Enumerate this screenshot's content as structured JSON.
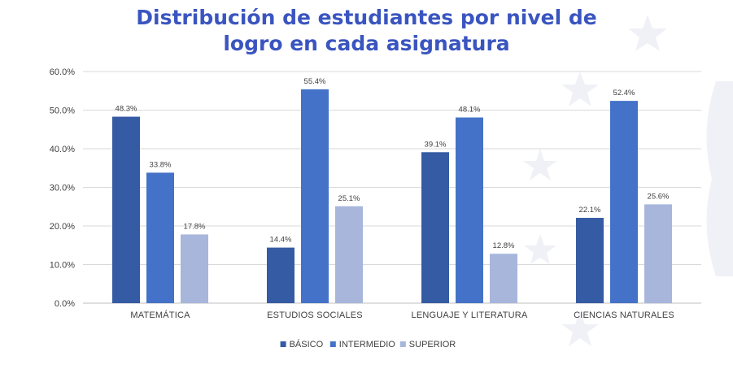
{
  "chart_data": {
    "type": "bar",
    "title_lines": [
      "Distribución de estudiantes por nivel de",
      "logro en cada asignatura"
    ],
    "categories": [
      "MATEMÁTICA",
      "ESTUDIOS SOCIALES",
      "LENGUAJE Y LITERATURA",
      "CIENCIAS  NATURALES"
    ],
    "series": [
      {
        "name": "BÁSICO",
        "color": "#345ba3",
        "values": [
          48.3,
          14.4,
          39.1,
          22.1
        ],
        "labels": [
          "48.3%",
          "14.4%",
          "39.1%",
          "22.1%"
        ]
      },
      {
        "name": "INTERMEDIO",
        "color": "#4472c8",
        "values": [
          33.8,
          55.4,
          48.1,
          52.4
        ],
        "labels": [
          "33.8%",
          "55.4%",
          "48.1%",
          "52.4%"
        ]
      },
      {
        "name": "SUPERIOR",
        "color": "#a8b6dc",
        "values": [
          17.8,
          25.1,
          12.8,
          25.6
        ],
        "labels": [
          "17.8%",
          "25.1%",
          "12.8%",
          "25.6%"
        ]
      }
    ],
    "ylim": [
      0,
      60
    ],
    "yticks": [
      0,
      10,
      20,
      30,
      40,
      50,
      60
    ],
    "ytick_labels": [
      "0.0%",
      "10.0%",
      "20.0%",
      "30.0%",
      "40.0%",
      "50.0%",
      "60.0%"
    ],
    "grid": true,
    "legend_position": "bottom-center",
    "xlabel": "",
    "ylabel": ""
  }
}
